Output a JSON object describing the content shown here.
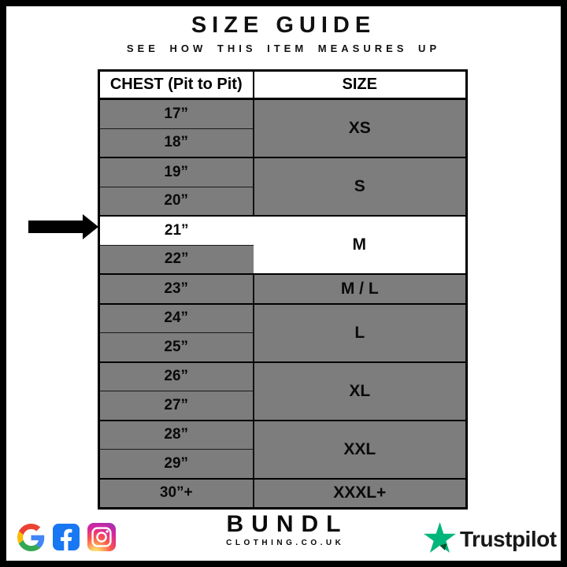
{
  "page": {
    "title": "SIZE GUIDE",
    "subtitle": "SEE HOW THIS ITEM MEASURES UP"
  },
  "table": {
    "headers": {
      "chest": "CHEST (Pit to Pit)",
      "size": "SIZE"
    },
    "blocks": [
      {
        "size": "XS",
        "chest": [
          "17”",
          "18”"
        ]
      },
      {
        "size": "S",
        "chest": [
          "19”",
          "20”"
        ]
      },
      {
        "size": "M",
        "chest": [
          "21”",
          "22”"
        ],
        "highlight": true,
        "highlighted_chest": "21”"
      },
      {
        "size": "M / L",
        "chest": [
          "23”"
        ]
      },
      {
        "size": "L",
        "chest": [
          "24”",
          "25”"
        ]
      },
      {
        "size": "XL",
        "chest": [
          "26”",
          "27”"
        ]
      },
      {
        "size": "XXL",
        "chest": [
          "28”",
          "29”"
        ]
      },
      {
        "size": "XXXL+",
        "chest": [
          "30”+"
        ]
      }
    ]
  },
  "indicator": {
    "shape": "right-arrow",
    "points_to_chest": "21”"
  },
  "footer": {
    "social_icons": [
      "google",
      "facebook",
      "instagram"
    ],
    "brand_name": "BUNDL",
    "brand_domain": "CLOTHING.CO.UK",
    "trustpilot_label": "Trustpilot"
  },
  "colors": {
    "row_gray": "#7d7d7d",
    "highlight_white": "#ffffff",
    "border_black": "#000000",
    "trustpilot_green": "#00b67a",
    "trustpilot_dark_green": "#005128",
    "facebook_blue": "#1877f2",
    "google_blue": "#4285f4",
    "google_red": "#ea4335",
    "google_yellow": "#fbbc05",
    "google_green": "#34a853"
  }
}
